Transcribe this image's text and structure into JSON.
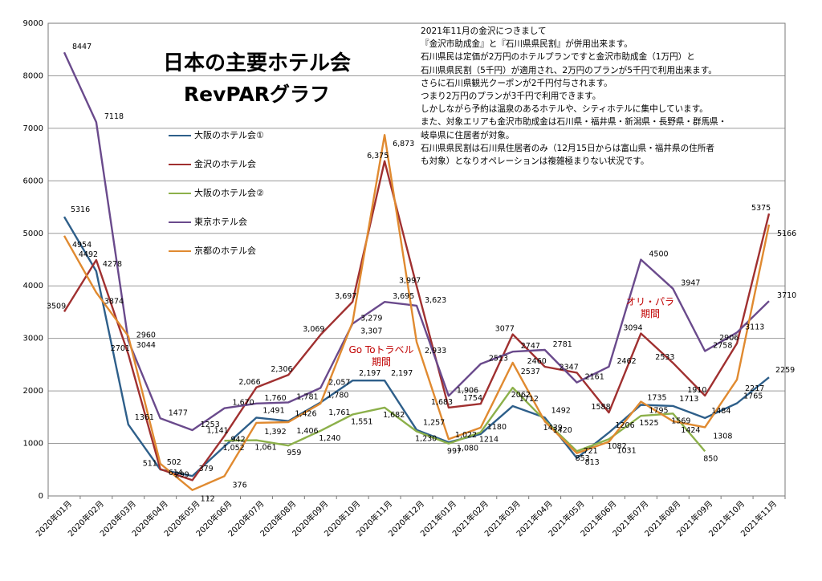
{
  "title_line1": "日本の主要ホテル会",
  "title_line2": "RevPARグラフ",
  "note_lines": [
    "2021年11月の金沢につきまして",
    "『金沢市助成金』と『石川県県民割』が併用出来ます。",
    "石川県民は定価が2万円のホテルプランですと金沢市助成金（1万円）と",
    "石川県県民割（5千円）が適用され、2万円のプランが5千円で利用出来ます。",
    "さらに石川県観光クーポンが2千円付与されます。",
    "つまり2万円のプランが3千円で利用できます。",
    "しかしながら予約は温泉のあるホテルや、シティホテルに集中しています。",
    "また、対象エリアも金沢市助成金は石川県・福井県・新潟県・長野県・群馬県・",
    "岐阜県に住居者が対象。",
    "石川県県民割は石川県住居者のみ（12月15日からは富山県・福井県の住所者",
    "も対象）となりオペレーションは複雑極まりない状況です。"
  ],
  "annotations": {
    "goto_line1": "Go Toトラベル",
    "goto_line2": "期間",
    "olympic_line1": "オリ・パラ",
    "olympic_line2": "期間",
    "color": "#c00000"
  },
  "chart_data": {
    "type": "line",
    "title": "日本の主要ホテル会 RevPARグラフ",
    "xlabel": "",
    "ylabel": "",
    "ylim": [
      0,
      9000
    ],
    "yticks": [
      "0",
      "1000",
      "2000",
      "3000",
      "4000",
      "5000",
      "6000",
      "7000",
      "8000",
      "9000"
    ],
    "grid": true,
    "legend_position": "upper-left",
    "categories": [
      "2020年01月",
      "2020年02月",
      "2020年03月",
      "2020年04月",
      "2020年05月",
      "2020年06月",
      "2020年07月",
      "2020年08月",
      "2020年09月",
      "2020年10月",
      "2020年11月",
      "2020年12月",
      "2021年01月",
      "2021年02月",
      "2021年03月",
      "2021年04月",
      "2021年05月",
      "2021年06月",
      "2021年07月",
      "2021年08月",
      "2021年09月",
      "2021年10月",
      "2021年11月"
    ],
    "series": [
      {
        "name": "大阪のホテル会①",
        "color": "#2e5f8a",
        "values": [
          5316,
          4278,
          1361,
          502,
          379,
          942,
          1491,
          1426,
          1780,
          2197,
          2197,
          1257,
          1022,
          1180,
          1712,
          1492,
          721,
          1206,
          1735,
          1713,
          1484,
          1765,
          2259
        ],
        "labels": [
          "5316",
          "4278",
          "1361",
          "502",
          "379",
          "942",
          "1,491",
          "1,426",
          "1,780",
          "2,197",
          "2,197",
          "1,257",
          "1,022",
          "1180",
          "1712",
          "1492",
          "721",
          "1206",
          "1735",
          "1713",
          "1484",
          "1765",
          "2259"
        ]
      },
      {
        "name": "金沢のホテル会",
        "color": "#a03030",
        "values": [
          3509,
          4492,
          2701,
          511,
          299,
          1141,
          2066,
          2306,
          3069,
          3697,
          6375,
          3997,
          1683,
          1754,
          3077,
          2460,
          2347,
          1588,
          3094,
          2533,
          1910,
          2906,
          5375
        ],
        "labels": [
          "3509",
          "4492",
          "2701",
          "511",
          "299",
          "1,141",
          "2,066",
          "2,306",
          "3,069",
          "3,697",
          "6,375",
          "3,997",
          "1,683",
          "1754",
          "3077",
          "2460",
          "2347",
          "1588",
          "3094",
          "2533",
          "1910",
          "2906",
          "5375"
        ]
      },
      {
        "name": "大阪のホテル会②",
        "color": "#8cb04a",
        "values": [
          null,
          null,
          null,
          null,
          null,
          1052,
          1061,
          959,
          1240,
          1551,
          1682,
          1230,
          997,
          1214,
          2062,
          1439,
          853,
          1082,
          1525,
          1569,
          850,
          null,
          null
        ],
        "labels": [
          "",
          "",
          "",
          "",
          "",
          "1,052",
          "1,061",
          "959",
          "1,240",
          "1,551",
          "1,682",
          "1,230",
          "997",
          "1214",
          "2062",
          "1439",
          "853",
          "1082",
          "1525",
          "1569",
          "850",
          "",
          ""
        ]
      },
      {
        "name": "東京ホテル会",
        "color": "#6a4a8c",
        "values": [
          8447,
          7118,
          2960,
          1477,
          1253,
          1670,
          1760,
          1781,
          2057,
          3279,
          3695,
          3623,
          1906,
          2513,
          2747,
          2781,
          2161,
          2462,
          4500,
          3947,
          2758,
          3113,
          3710
        ],
        "labels": [
          "8447",
          "7118",
          "2960",
          "1477",
          "1253",
          "1,670",
          "1,760",
          "1,781",
          "2,057",
          "3,279",
          "3,695",
          "3,623",
          "1,906",
          "2513",
          "2747",
          "2781",
          "2161",
          "2462",
          "4500",
          "3947",
          "2758",
          "3113",
          "3710"
        ]
      },
      {
        "name": "京都のホテル会",
        "color": "#e08a30",
        "values": [
          4954,
          3874,
          3044,
          614,
          112,
          376,
          1392,
          1406,
          1761,
          3307,
          6873,
          2933,
          1080,
          1300,
          2537,
          1420,
          813,
          1031,
          1795,
          1424,
          1308,
          2217,
          5166
        ],
        "labels": [
          "4954",
          "3874",
          "3044",
          "614",
          "112",
          "376",
          "1,392",
          "1,406",
          "1,761",
          "3,307",
          "6,873",
          "2,933",
          "1,080",
          "",
          "2537",
          "1420",
          "813",
          "1031",
          "1795",
          "1424",
          "1308",
          "2217",
          "5166"
        ]
      }
    ]
  }
}
